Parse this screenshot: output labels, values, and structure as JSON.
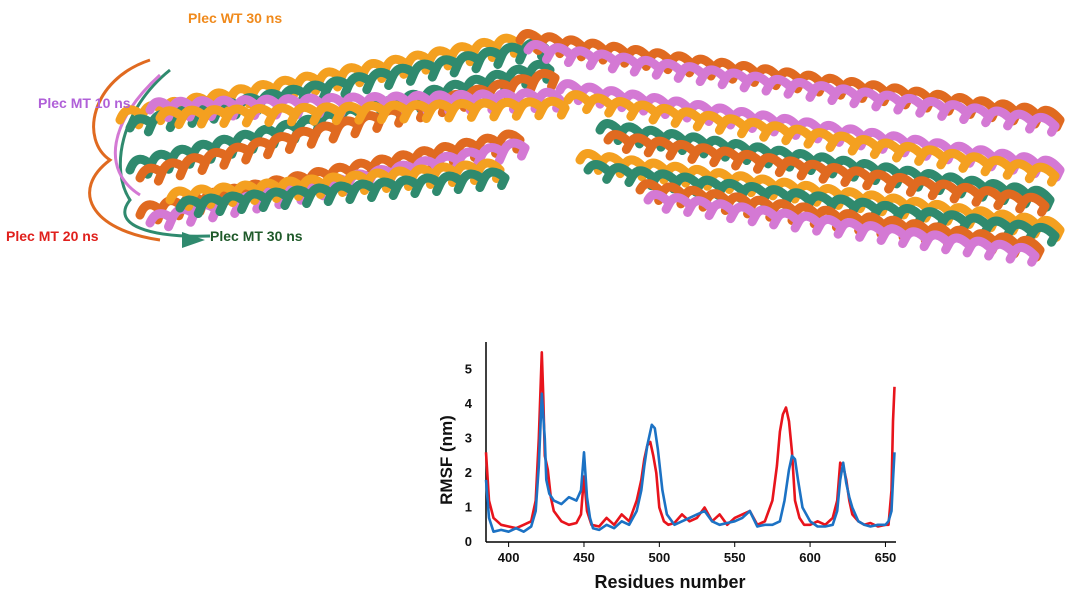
{
  "structure": {
    "labels": [
      {
        "id": "wt30",
        "text": "Plec WT 30 ns",
        "color": "#f08a1c"
      },
      {
        "id": "mt10",
        "text": "Plec MT 10 ns",
        "color": "#b060d8"
      },
      {
        "id": "mt20",
        "text": "Plec MT 20 ns",
        "color": "#e0201c"
      },
      {
        "id": "mt30",
        "text": "Plec MT 30 ns",
        "color": "#1f5a2a"
      }
    ],
    "ribbon_colors": {
      "orange": "#f4a020",
      "dark_orange": "#e06a20",
      "green": "#2f8a6e",
      "magenta": "#d479d4"
    }
  },
  "chart_data": {
    "type": "line",
    "title": "",
    "xlabel": "Residues number",
    "ylabel": "RMSF (nm)",
    "xlim": [
      385,
      657
    ],
    "ylim": [
      0,
      5.8
    ],
    "xticks": [
      400,
      450,
      500,
      550,
      600,
      650
    ],
    "yticks": [
      0,
      1,
      2,
      3,
      4,
      5
    ],
    "grid": false,
    "legend": "none",
    "series": [
      {
        "color": "#e8141c",
        "x": [
          385,
          387,
          390,
          395,
          400,
          405,
          410,
          415,
          418,
          420,
          422,
          423,
          424,
          426,
          428,
          430,
          435,
          440,
          445,
          448,
          450,
          452,
          455,
          460,
          465,
          470,
          475,
          480,
          485,
          488,
          490,
          492,
          494,
          496,
          498,
          500,
          503,
          506,
          510,
          515,
          520,
          525,
          530,
          535,
          540,
          545,
          550,
          555,
          560,
          565,
          570,
          575,
          578,
          580,
          582,
          584,
          586,
          588,
          590,
          593,
          596,
          600,
          605,
          610,
          615,
          618,
          620,
          622,
          624,
          626,
          628,
          632,
          636,
          640,
          645,
          650,
          652,
          654,
          655,
          656
        ],
        "y": [
          2.6,
          1.2,
          0.7,
          0.5,
          0.45,
          0.4,
          0.5,
          0.6,
          1.2,
          3.0,
          5.5,
          4.2,
          2.5,
          2.1,
          1.3,
          0.9,
          0.6,
          0.5,
          0.55,
          0.8,
          1.9,
          0.9,
          0.5,
          0.45,
          0.7,
          0.5,
          0.8,
          0.6,
          1.2,
          1.8,
          2.4,
          2.8,
          2.9,
          2.5,
          2.0,
          1.0,
          0.6,
          0.5,
          0.55,
          0.8,
          0.6,
          0.7,
          1.0,
          0.6,
          0.8,
          0.5,
          0.7,
          0.8,
          0.9,
          0.5,
          0.6,
          1.2,
          2.2,
          3.2,
          3.7,
          3.9,
          3.5,
          2.6,
          1.2,
          0.7,
          0.5,
          0.5,
          0.6,
          0.5,
          0.7,
          1.2,
          2.3,
          2.2,
          1.8,
          1.2,
          0.8,
          0.6,
          0.5,
          0.55,
          0.45,
          0.5,
          0.5,
          1.5,
          3.5,
          4.5
        ]
      },
      {
        "color": "#1c72c4",
        "x": [
          385,
          387,
          390,
          395,
          400,
          405,
          410,
          415,
          418,
          420,
          422,
          424,
          425,
          427,
          430,
          435,
          440,
          445,
          448,
          450,
          452,
          454,
          456,
          460,
          465,
          470,
          475,
          480,
          485,
          488,
          490,
          492,
          495,
          497,
          499,
          502,
          505,
          510,
          515,
          520,
          525,
          530,
          535,
          540,
          545,
          550,
          555,
          560,
          565,
          570,
          575,
          580,
          583,
          586,
          588,
          590,
          592,
          595,
          600,
          605,
          610,
          615,
          618,
          620,
          622,
          624,
          626,
          628,
          632,
          636,
          640,
          645,
          650,
          652,
          654,
          655,
          656
        ],
        "y": [
          1.8,
          0.7,
          0.3,
          0.35,
          0.3,
          0.4,
          0.3,
          0.45,
          0.9,
          2.2,
          4.3,
          3.0,
          1.8,
          1.4,
          1.2,
          1.1,
          1.3,
          1.2,
          1.5,
          2.6,
          1.3,
          0.7,
          0.4,
          0.35,
          0.5,
          0.4,
          0.6,
          0.5,
          0.9,
          1.5,
          2.2,
          2.8,
          3.4,
          3.3,
          2.7,
          1.5,
          0.8,
          0.5,
          0.6,
          0.7,
          0.8,
          0.9,
          0.6,
          0.5,
          0.55,
          0.6,
          0.7,
          0.9,
          0.45,
          0.5,
          0.5,
          0.6,
          1.2,
          2.1,
          2.5,
          2.4,
          1.8,
          1.0,
          0.6,
          0.45,
          0.45,
          0.5,
          0.9,
          1.8,
          2.3,
          1.7,
          1.3,
          1.0,
          0.6,
          0.5,
          0.45,
          0.5,
          0.5,
          0.6,
          0.9,
          1.8,
          2.6
        ]
      }
    ]
  }
}
